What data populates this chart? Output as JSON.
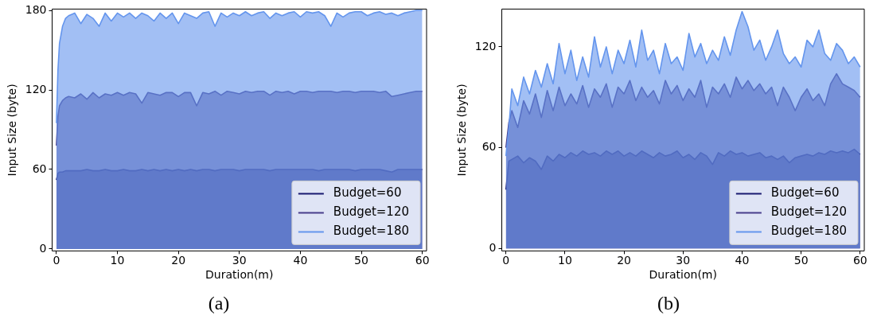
{
  "chart_data": [
    {
      "type": "area",
      "xlabel": "Duration(m)",
      "ylabel": "Input Size (byte)",
      "annotations": [
        "(a)"
      ],
      "x": [
        0,
        0.25,
        0.5,
        1,
        1.5,
        2,
        3,
        4,
        5,
        6,
        7,
        8,
        9,
        10,
        11,
        12,
        13,
        14,
        15,
        16,
        17,
        18,
        19,
        20,
        21,
        22,
        23,
        24,
        25,
        26,
        27,
        28,
        29,
        30,
        31,
        32,
        33,
        34,
        35,
        36,
        37,
        38,
        39,
        40,
        41,
        42,
        43,
        44,
        45,
        46,
        47,
        48,
        49,
        50,
        51,
        52,
        53,
        54,
        55,
        56,
        57,
        58,
        59,
        60
      ],
      "series": [
        {
          "name": "Budget=60",
          "color": "#191970",
          "values": [
            52,
            57,
            58,
            58,
            59,
            59,
            59,
            59,
            60,
            59,
            59,
            60,
            59,
            59,
            60,
            59,
            59,
            60,
            59,
            60,
            59,
            60,
            59,
            60,
            59,
            60,
            59,
            60,
            60,
            59,
            60,
            60,
            60,
            59,
            60,
            60,
            60,
            60,
            59,
            60,
            60,
            60,
            60,
            60,
            60,
            60,
            59,
            60,
            60,
            60,
            60,
            60,
            59,
            60,
            60,
            60,
            60,
            59,
            58,
            60,
            60,
            60,
            60,
            60
          ]
        },
        {
          "name": "Budget=120",
          "color": "#483d8b",
          "values": [
            78,
            100,
            108,
            112,
            114,
            115,
            114,
            117,
            113,
            118,
            114,
            117,
            116,
            118,
            116,
            118,
            117,
            110,
            118,
            117,
            116,
            118,
            118,
            115,
            118,
            118,
            108,
            118,
            117,
            119,
            116,
            119,
            118,
            117,
            119,
            118,
            119,
            119,
            116,
            119,
            118,
            119,
            117,
            119,
            119,
            118,
            119,
            119,
            119,
            118,
            119,
            119,
            118,
            119,
            119,
            119,
            118,
            119,
            115,
            116,
            117,
            118,
            119,
            119
          ]
        },
        {
          "name": "Budget=180",
          "color": "#6495ed",
          "values": [
            95,
            135,
            155,
            168,
            174,
            176,
            178,
            170,
            177,
            174,
            168,
            178,
            172,
            178,
            175,
            178,
            174,
            178,
            176,
            172,
            178,
            174,
            178,
            170,
            178,
            176,
            174,
            178,
            179,
            168,
            178,
            175,
            178,
            176,
            179,
            176,
            178,
            179,
            174,
            178,
            176,
            178,
            179,
            175,
            179,
            178,
            179,
            176,
            168,
            178,
            175,
            178,
            179,
            179,
            176,
            178,
            179,
            177,
            178,
            176,
            178,
            179,
            180,
            180
          ]
        }
      ],
      "xlim": [
        -0.7,
        60.7
      ],
      "ylim": [
        -1.5,
        181
      ],
      "xticks": [
        0,
        10,
        20,
        30,
        40,
        50,
        60
      ],
      "yticks": [
        0,
        60,
        120,
        180
      ],
      "legend": "bottom right"
    },
    {
      "type": "area",
      "xlabel": "Duration(m)",
      "ylabel": "Input Size (byte)",
      "annotations": [
        "(b)"
      ],
      "x": [
        0,
        0.5,
        1,
        2,
        3,
        4,
        5,
        6,
        7,
        8,
        9,
        10,
        11,
        12,
        13,
        14,
        15,
        16,
        17,
        18,
        19,
        20,
        21,
        22,
        23,
        24,
        25,
        26,
        27,
        28,
        29,
        30,
        31,
        32,
        33,
        34,
        35,
        36,
        37,
        38,
        39,
        40,
        41,
        42,
        43,
        44,
        45,
        46,
        47,
        48,
        49,
        50,
        51,
        52,
        53,
        54,
        55,
        56,
        57,
        58,
        59,
        60
      ],
      "series": [
        {
          "name": "Budget=60",
          "color": "#191970",
          "values": [
            35,
            52,
            53,
            55,
            51,
            54,
            52,
            47,
            55,
            52,
            56,
            54,
            57,
            55,
            58,
            56,
            57,
            55,
            58,
            56,
            58,
            55,
            57,
            55,
            58,
            56,
            54,
            57,
            55,
            56,
            58,
            54,
            56,
            53,
            57,
            55,
            50,
            57,
            55,
            58,
            56,
            57,
            55,
            56,
            57,
            54,
            55,
            53,
            55,
            51,
            54,
            55,
            56,
            55,
            57,
            56,
            58,
            57,
            58,
            57,
            59,
            56
          ]
        },
        {
          "name": "Budget=120",
          "color": "#483d8b",
          "values": [
            60,
            75,
            82,
            72,
            88,
            80,
            92,
            78,
            94,
            82,
            96,
            85,
            92,
            86,
            97,
            84,
            95,
            90,
            98,
            84,
            96,
            92,
            100,
            88,
            96,
            90,
            94,
            86,
            100,
            92,
            97,
            88,
            95,
            90,
            100,
            84,
            96,
            92,
            98,
            90,
            102,
            95,
            100,
            94,
            98,
            92,
            96,
            85,
            96,
            90,
            82,
            90,
            95,
            88,
            92,
            85,
            98,
            104,
            98,
            96,
            94,
            90
          ]
        },
        {
          "name": "Budget=180",
          "color": "#6495ed",
          "values": [
            55,
            72,
            95,
            85,
            102,
            92,
            106,
            96,
            110,
            98,
            122,
            104,
            118,
            100,
            114,
            102,
            126,
            108,
            120,
            104,
            118,
            110,
            124,
            108,
            130,
            112,
            118,
            104,
            122,
            110,
            114,
            106,
            128,
            114,
            122,
            110,
            118,
            112,
            126,
            115,
            130,
            141,
            132,
            118,
            124,
            112,
            120,
            130,
            116,
            110,
            114,
            108,
            124,
            120,
            130,
            116,
            112,
            122,
            118,
            110,
            114,
            108
          ]
        }
      ],
      "xlim": [
        -0.7,
        60.7
      ],
      "ylim": [
        -1.5,
        142.5
      ],
      "xticks": [
        0,
        10,
        20,
        30,
        40,
        50,
        60
      ],
      "yticks": [
        0,
        60,
        120
      ],
      "legend": "bottom right"
    }
  ]
}
